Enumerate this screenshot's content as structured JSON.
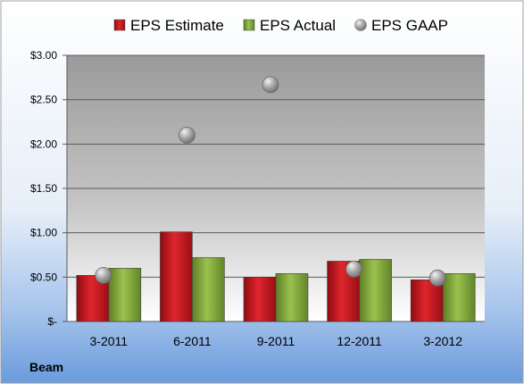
{
  "company": "Beam",
  "chart_data": {
    "type": "bar",
    "categories": [
      "3-2011",
      "6-2011",
      "9-2011",
      "12-2011",
      "3-2012"
    ],
    "series": [
      {
        "name": "EPS Estimate",
        "kind": "bar",
        "color": "#C0141C",
        "values": [
          0.52,
          1.01,
          0.5,
          0.68,
          0.47
        ]
      },
      {
        "name": "EPS Actual",
        "kind": "bar",
        "color": "#7FA53A",
        "values": [
          0.6,
          0.72,
          0.54,
          0.7,
          0.54
        ]
      },
      {
        "name": "EPS GAAP",
        "kind": "marker",
        "color": "#A6A6A6",
        "values": [
          0.52,
          2.1,
          2.67,
          0.59,
          0.49
        ]
      }
    ],
    "y_ticks": [
      {
        "value": 3.0,
        "label": "$3.00"
      },
      {
        "value": 2.5,
        "label": "$2.50"
      },
      {
        "value": 2.0,
        "label": "$2.00"
      },
      {
        "value": 1.5,
        "label": "$1.50"
      },
      {
        "value": 1.0,
        "label": "$1.00"
      },
      {
        "value": 0.5,
        "label": "$0.50"
      },
      {
        "value": 0,
        "label": "$-"
      }
    ],
    "ylim": [
      0,
      3
    ],
    "grid": true,
    "legend_position": "top"
  }
}
